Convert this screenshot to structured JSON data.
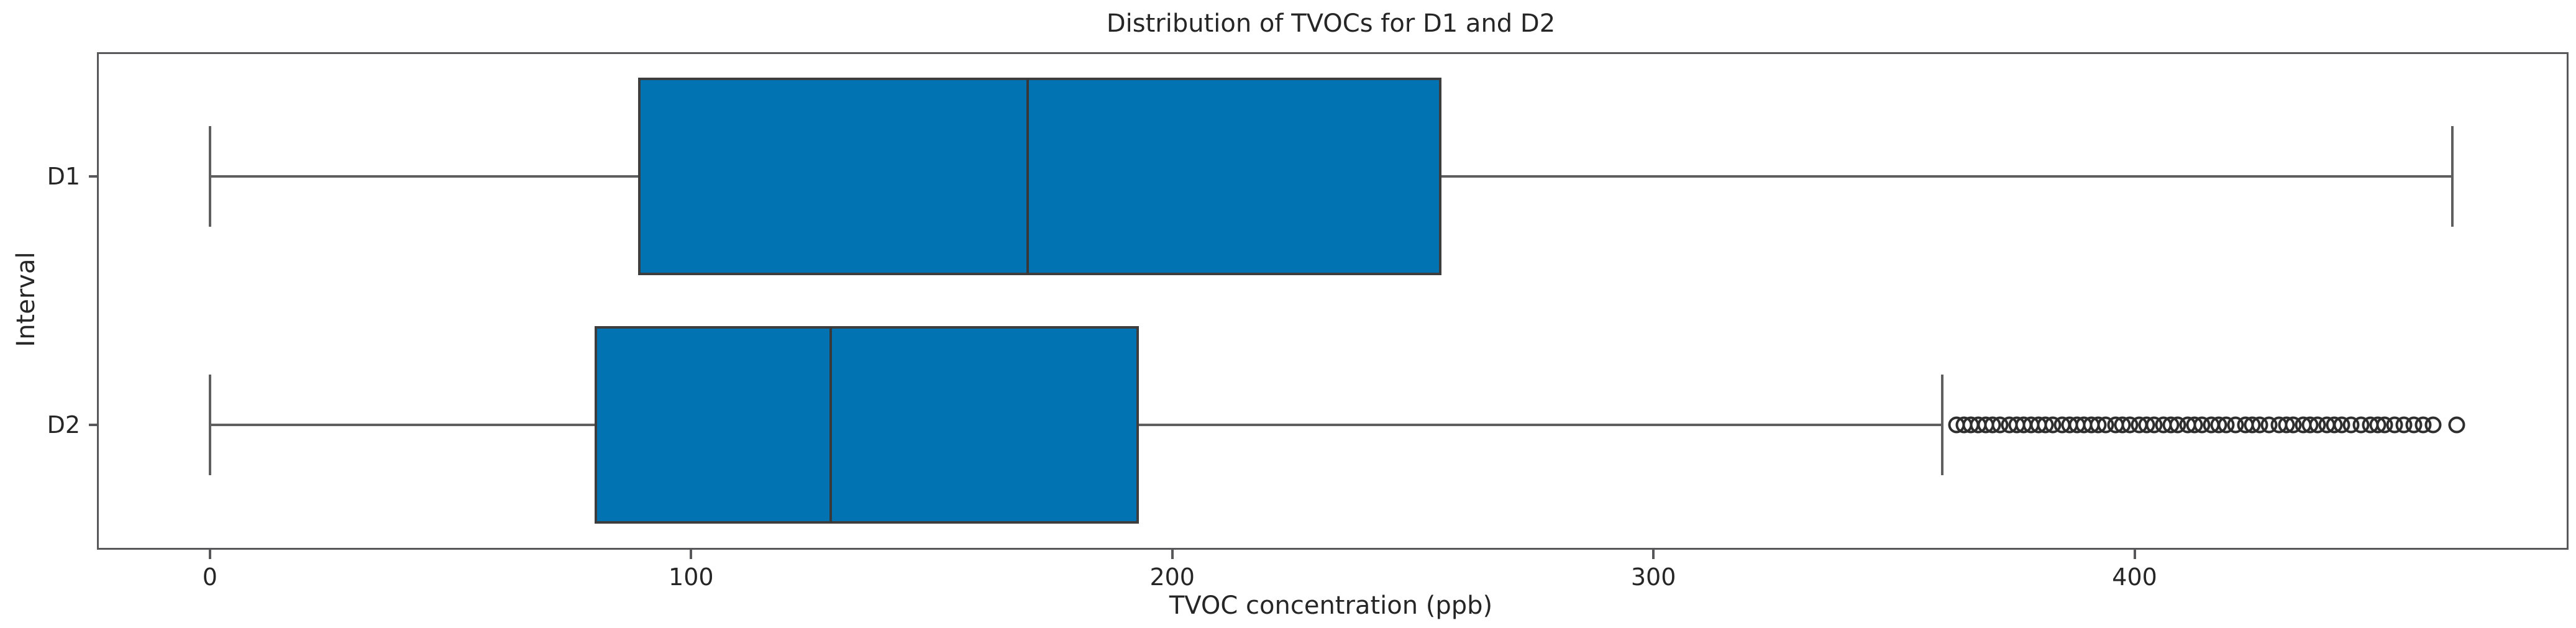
{
  "figure": {
    "title": "Distribution of TVOCs for D1 and D2",
    "xlabel": "TVOC concentration (ppb)",
    "ylabel": "Interval",
    "colors": {
      "box_fill": "#0173b2",
      "box_edge": "#3d3d3d",
      "whisker": "#5f5f5f",
      "spine": "#58585a",
      "flier_edge": "#2e2e2e",
      "text": "#262626",
      "background": "#ffffff"
    }
  },
  "chart_data": {
    "type": "boxplot",
    "orientation": "horizontal",
    "title": "Distribution of TVOCs for D1 and D2",
    "xlabel": "TVOC concentration (ppb)",
    "ylabel": "Interval",
    "categories": [
      "D1",
      "D2"
    ],
    "x_ticks": [
      0,
      100,
      200,
      300,
      400
    ],
    "x_range": [
      -23.1,
      489.8
    ],
    "grid": false,
    "legend": false,
    "series": [
      {
        "name": "D1",
        "whisker_low": 0,
        "q1": 89,
        "median": 170,
        "q3": 256,
        "whisker_high": 466,
        "outliers": []
      },
      {
        "name": "D2",
        "whisker_low": 0,
        "q1": 80,
        "median": 129,
        "q3": 193,
        "whisker_high": 360,
        "outliers": [
          363,
          364.5,
          366,
          367.5,
          369,
          370.5,
          372,
          374,
          375.5,
          377,
          378.5,
          380,
          381.5,
          383,
          385,
          386.5,
          388,
          389.5,
          391,
          392.5,
          394,
          396,
          397.5,
          399,
          401,
          402.5,
          404,
          406,
          407.5,
          409,
          411,
          412.5,
          414,
          416,
          417.5,
          419,
          421,
          423,
          424.5,
          426,
          428,
          430,
          431.5,
          433,
          435,
          436.5,
          438,
          440,
          441.5,
          443,
          445,
          447,
          449,
          450.5,
          452,
          454,
          456,
          458,
          460,
          462,
          467
        ]
      }
    ]
  }
}
